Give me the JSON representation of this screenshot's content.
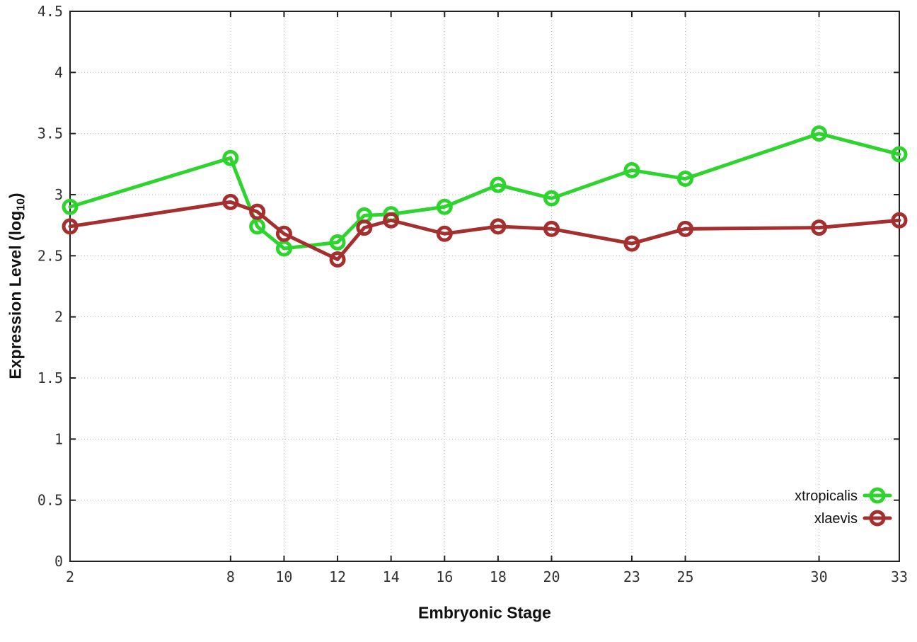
{
  "chart_data": {
    "type": "line",
    "title": "",
    "xlabel": "Embryonic Stage",
    "ylabel": "Expression Level (log10)",
    "ylabel_parts": {
      "prefix": "Expression Level (log",
      "sub": "10",
      "suffix": ")"
    },
    "x": [
      2,
      8,
      9,
      10,
      12,
      13,
      14,
      16,
      18,
      20,
      23,
      25,
      30,
      33
    ],
    "series": [
      {
        "name": "xtropicalis",
        "color": "#2ed42e",
        "values": [
          2.9,
          3.3,
          2.74,
          2.56,
          2.61,
          2.83,
          2.84,
          2.9,
          3.08,
          2.97,
          3.2,
          3.13,
          3.5,
          3.33
        ]
      },
      {
        "name": "xlaevis",
        "color": "#a52f2f",
        "values": [
          2.74,
          2.94,
          2.86,
          2.68,
          2.47,
          2.73,
          2.79,
          2.68,
          2.74,
          2.72,
          2.6,
          2.72,
          2.73,
          2.79
        ]
      }
    ],
    "xlim": [
      2,
      33
    ],
    "ylim": [
      0,
      4.5
    ],
    "xticks": [
      2,
      8,
      10,
      12,
      14,
      16,
      18,
      20,
      23,
      25,
      30,
      33
    ],
    "xtick_labels": [
      "2",
      "8",
      "10",
      "12",
      "14",
      "16",
      "18",
      "20",
      "23",
      "25",
      "30",
      "33"
    ],
    "yticks": [
      0,
      0.5,
      1,
      1.5,
      2,
      2.5,
      3,
      3.5,
      4,
      4.5
    ],
    "ytick_labels": [
      "0",
      "0.5",
      "1",
      "1.5",
      "2",
      "2.5",
      "3",
      "3.5",
      "4",
      "4.5"
    ],
    "grid": true,
    "legend_position": "inside-bottom-right",
    "colors": {
      "background": "#ffffff",
      "border": "#222222",
      "grid": "#bbbbbb",
      "tick_label": "#333333",
      "legend_text": "#111111"
    }
  }
}
